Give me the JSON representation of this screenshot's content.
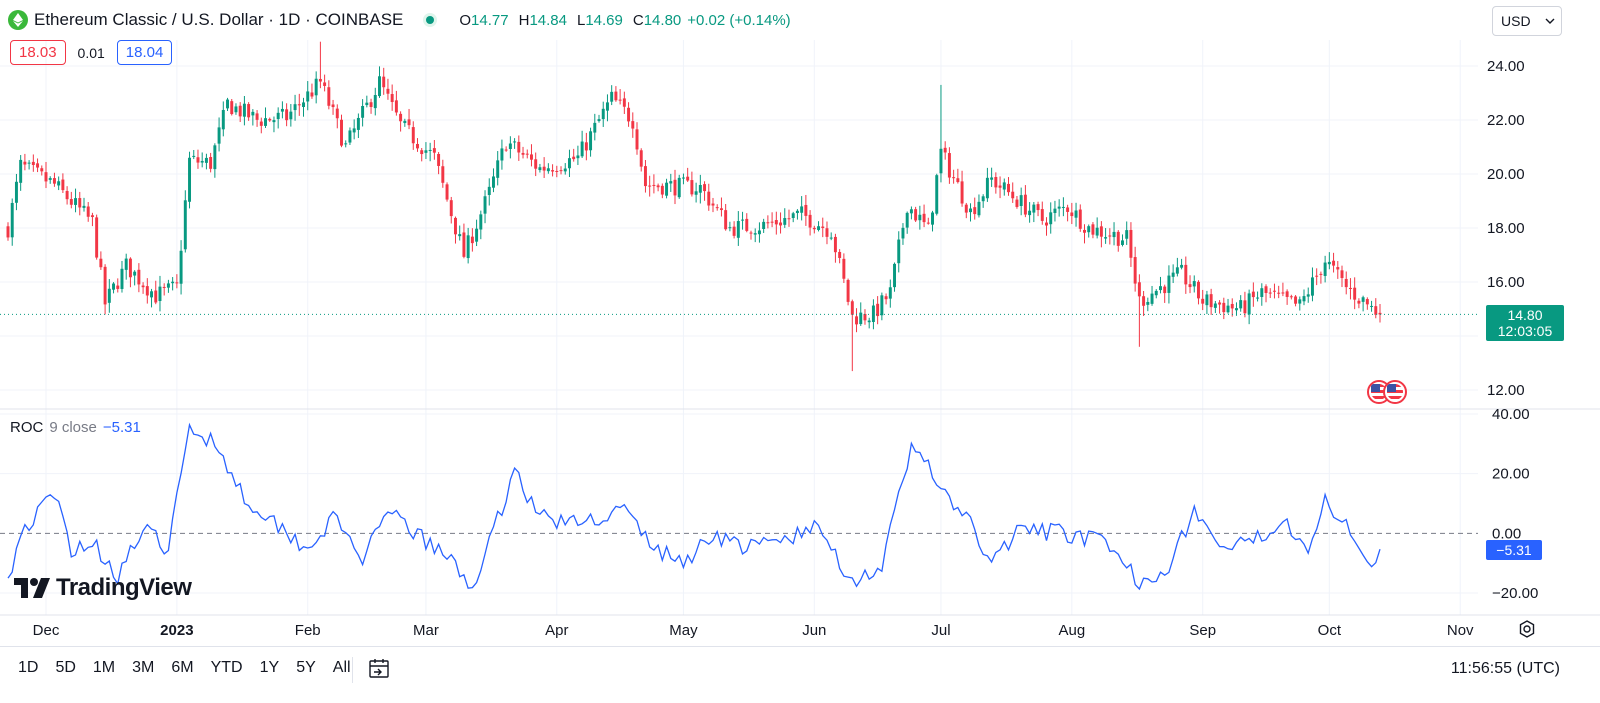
{
  "header": {
    "symbol_title": "Ethereum Classic / U.S. Dollar · 1D · COINBASE",
    "open_label": "O",
    "open_value": "14.77",
    "high_label": "H",
    "high_value": "14.84",
    "low_label": "L",
    "low_value": "14.69",
    "close_label": "C",
    "close_value": "14.80",
    "change": "+0.02 (+0.14%)",
    "bid": "18.03",
    "spread": "0.01",
    "ask": "18.04",
    "currency": "USD"
  },
  "price_axis": {
    "ticks": [
      "24.00",
      "22.00",
      "20.00",
      "18.00",
      "16.00",
      "12.00"
    ],
    "current_price": "14.80",
    "countdown": "12:03:05"
  },
  "roc_axis": {
    "ticks": [
      "40.00",
      "20.00",
      "0.00",
      "−20.00"
    ],
    "current_value": "−5.31"
  },
  "roc_legend": {
    "label": "ROC",
    "params": "9 close",
    "value": "−5.31"
  },
  "time_axis": [
    "Dec",
    "2023",
    "Feb",
    "Mar",
    "Apr",
    "May",
    "Jun",
    "Jul",
    "Aug",
    "Sep",
    "Oct",
    "Nov"
  ],
  "branding": "TradingView",
  "bottom_bar": {
    "ranges": [
      "1D",
      "5D",
      "1M",
      "3M",
      "6M",
      "YTD",
      "1Y",
      "5Y",
      "All"
    ],
    "clock": "11:56:55 (UTC)"
  },
  "colors": {
    "up": "#089981",
    "down": "#f23645",
    "roc_line": "#2962ff",
    "grid": "#f0f3fa",
    "logo": "#3ab83a"
  },
  "chart_data": [
    {
      "type": "candlestick",
      "title": "Ethereum Classic / U.S. Dollar · 1D · COINBASE",
      "xlabel": "",
      "ylabel": "",
      "x_range": [
        "2022-11-22",
        "2023-10-13"
      ],
      "ylim": [
        11.4,
        25.1
      ],
      "current_price": 14.8,
      "anchors": [
        {
          "date": "2022-11-22",
          "close": 18.0
        },
        {
          "date": "2022-11-25",
          "close": 20.3
        },
        {
          "date": "2022-12-03",
          "close": 19.6
        },
        {
          "date": "2022-12-12",
          "close": 18.2
        },
        {
          "date": "2022-12-15",
          "close": 15.2
        },
        {
          "date": "2022-12-20",
          "close": 16.6
        },
        {
          "date": "2022-12-27",
          "close": 15.5
        },
        {
          "date": "2023-01-01",
          "close": 15.8
        },
        {
          "date": "2023-01-04",
          "close": 20.5
        },
        {
          "date": "2023-01-09",
          "close": 20.4
        },
        {
          "date": "2023-01-13",
          "close": 22.6
        },
        {
          "date": "2023-01-20",
          "close": 22.0
        },
        {
          "date": "2023-01-27",
          "close": 22.1
        },
        {
          "date": "2023-02-04",
          "close": 23.4
        },
        {
          "date": "2023-02-10",
          "close": 21.0
        },
        {
          "date": "2023-02-18",
          "close": 23.4
        },
        {
          "date": "2023-02-23",
          "close": 21.8
        },
        {
          "date": "2023-03-03",
          "close": 20.6
        },
        {
          "date": "2023-03-10",
          "close": 17.0
        },
        {
          "date": "2023-03-16",
          "close": 19.3
        },
        {
          "date": "2023-03-20",
          "close": 21.2
        },
        {
          "date": "2023-03-28",
          "close": 20.2
        },
        {
          "date": "2023-04-06",
          "close": 20.6
        },
        {
          "date": "2023-04-14",
          "close": 22.8
        },
        {
          "date": "2023-04-19",
          "close": 22.0
        },
        {
          "date": "2023-04-22",
          "close": 19.6
        },
        {
          "date": "2023-05-05",
          "close": 19.5
        },
        {
          "date": "2023-05-12",
          "close": 18.0
        },
        {
          "date": "2023-05-20",
          "close": 18.1
        },
        {
          "date": "2023-05-29",
          "close": 18.5
        },
        {
          "date": "2023-06-05",
          "close": 17.9
        },
        {
          "date": "2023-06-10",
          "close": 14.7
        },
        {
          "date": "2023-06-15",
          "close": 14.8
        },
        {
          "date": "2023-06-19",
          "close": 15.6
        },
        {
          "date": "2023-06-23",
          "close": 18.9
        },
        {
          "date": "2023-06-28",
          "close": 17.9
        },
        {
          "date": "2023-07-01",
          "close": 20.8
        },
        {
          "date": "2023-07-08",
          "close": 18.6
        },
        {
          "date": "2023-07-13",
          "close": 19.8
        },
        {
          "date": "2023-07-25",
          "close": 18.3
        },
        {
          "date": "2023-07-31",
          "close": 18.8
        },
        {
          "date": "2023-08-05",
          "close": 18.0
        },
        {
          "date": "2023-08-14",
          "close": 17.6
        },
        {
          "date": "2023-08-17",
          "close": 15.3
        },
        {
          "date": "2023-08-22",
          "close": 15.8
        },
        {
          "date": "2023-08-27",
          "close": 16.3
        },
        {
          "date": "2023-09-01",
          "close": 15.3
        },
        {
          "date": "2023-09-10",
          "close": 15.0
        },
        {
          "date": "2023-09-15",
          "close": 15.6
        },
        {
          "date": "2023-09-24",
          "close": 15.1
        },
        {
          "date": "2023-09-30",
          "close": 16.8
        },
        {
          "date": "2023-10-05",
          "close": 15.8
        },
        {
          "date": "2023-10-13",
          "close": 14.8
        }
      ],
      "wick_extremes": [
        {
          "date": "2023-02-04",
          "high": 24.9
        },
        {
          "date": "2023-06-10",
          "low": 12.7
        },
        {
          "date": "2023-07-01",
          "high": 23.3
        },
        {
          "date": "2023-08-17",
          "low": 13.6
        }
      ]
    },
    {
      "type": "line",
      "title": "ROC 9 close",
      "xlabel": "",
      "ylabel": "",
      "x_range": [
        "2022-11-22",
        "2023-10-13"
      ],
      "ylim": [
        -24,
        41
      ],
      "current_value": -5.31,
      "series": [
        {
          "name": "ROC",
          "points": [
            {
              "date": "2022-11-22",
              "value": -15
            },
            {
              "date": "2022-11-25",
              "value": 0
            },
            {
              "date": "2022-12-03",
              "value": 13
            },
            {
              "date": "2022-12-07",
              "value": -5
            },
            {
              "date": "2022-12-12",
              "value": -3
            },
            {
              "date": "2022-12-18",
              "value": -14
            },
            {
              "date": "2022-12-24",
              "value": 1
            },
            {
              "date": "2022-12-30",
              "value": -5
            },
            {
              "date": "2023-01-04",
              "value": 35
            },
            {
              "date": "2023-01-10",
              "value": 31
            },
            {
              "date": "2023-01-17",
              "value": 12
            },
            {
              "date": "2023-01-24",
              "value": 4
            },
            {
              "date": "2023-02-01",
              "value": -5
            },
            {
              "date": "2023-02-07",
              "value": 5
            },
            {
              "date": "2023-02-14",
              "value": -8
            },
            {
              "date": "2023-02-21",
              "value": 7
            },
            {
              "date": "2023-03-01",
              "value": -3
            },
            {
              "date": "2023-03-06",
              "value": -8
            },
            {
              "date": "2023-03-12",
              "value": -18
            },
            {
              "date": "2023-03-17",
              "value": 0
            },
            {
              "date": "2023-03-22",
              "value": 22
            },
            {
              "date": "2023-03-27",
              "value": 7
            },
            {
              "date": "2023-04-04",
              "value": 3
            },
            {
              "date": "2023-04-10",
              "value": 5
            },
            {
              "date": "2023-04-17",
              "value": 8
            },
            {
              "date": "2023-04-24",
              "value": -5
            },
            {
              "date": "2023-05-01",
              "value": -10
            },
            {
              "date": "2023-05-08",
              "value": 0
            },
            {
              "date": "2023-05-16",
              "value": -5
            },
            {
              "date": "2023-05-25",
              "value": -2
            },
            {
              "date": "2023-06-02",
              "value": 2
            },
            {
              "date": "2023-06-10",
              "value": -16
            },
            {
              "date": "2023-06-17",
              "value": -11
            },
            {
              "date": "2023-06-24",
              "value": 28
            },
            {
              "date": "2023-06-28",
              "value": 25
            },
            {
              "date": "2023-07-01",
              "value": 13
            },
            {
              "date": "2023-07-07",
              "value": 6
            },
            {
              "date": "2023-07-12",
              "value": -10
            },
            {
              "date": "2023-07-20",
              "value": 1
            },
            {
              "date": "2023-07-31",
              "value": 0
            },
            {
              "date": "2023-08-08",
              "value": -3
            },
            {
              "date": "2023-08-17",
              "value": -16
            },
            {
              "date": "2023-08-24",
              "value": -11
            },
            {
              "date": "2023-08-30",
              "value": 8
            },
            {
              "date": "2023-09-05",
              "value": -5
            },
            {
              "date": "2023-09-12",
              "value": -4
            },
            {
              "date": "2023-09-20",
              "value": 5
            },
            {
              "date": "2023-09-26",
              "value": -4
            },
            {
              "date": "2023-09-30",
              "value": 10
            },
            {
              "date": "2023-10-06",
              "value": 2
            },
            {
              "date": "2023-10-10",
              "value": -10
            },
            {
              "date": "2023-10-13",
              "value": -5.31
            }
          ]
        }
      ]
    }
  ]
}
